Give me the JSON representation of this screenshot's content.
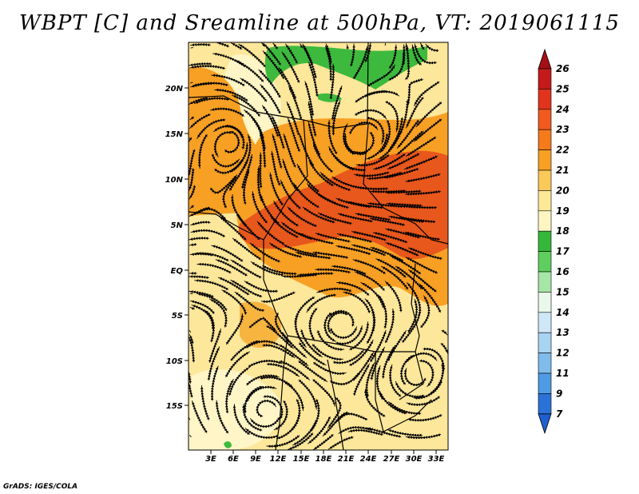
{
  "title": "WBPT [C] and Sreamline at 500hPa, VT: 2019061115",
  "credit": "GrADS: IGES/COLA",
  "map": {
    "lat_ticks": [
      "20N",
      "15N",
      "10N",
      "5N",
      "EQ",
      "5S",
      "10S",
      "15S"
    ],
    "lon_ticks": [
      "3E",
      "6E",
      "9E",
      "12E",
      "15E",
      "18E",
      "21E",
      "24E",
      "27E",
      "30E",
      "33E"
    ]
  },
  "colorbar": {
    "labels": [
      "26",
      "25",
      "24",
      "23",
      "22",
      "21",
      "20",
      "19",
      "18",
      "17",
      "16",
      "15",
      "14",
      "13",
      "12",
      "11",
      "9",
      "7"
    ],
    "colors": [
      "#a50f15",
      "#c41a1a",
      "#e0341c",
      "#f05a1e",
      "#f47a1c",
      "#f7a024",
      "#fbc85a",
      "#fde896",
      "#fff5c3",
      "#35b83a",
      "#5ecf5e",
      "#a6e6a6",
      "#eaf8ea",
      "#cfe8f8",
      "#a8d3f3",
      "#7fbcec",
      "#4f9be3",
      "#2b72d6",
      "#1f5fcf"
    ]
  },
  "palette": {
    "orange": "#f58a1f",
    "red_orange": "#e5501c",
    "pale": "#fde8a0",
    "green": "#3dba3d"
  }
}
